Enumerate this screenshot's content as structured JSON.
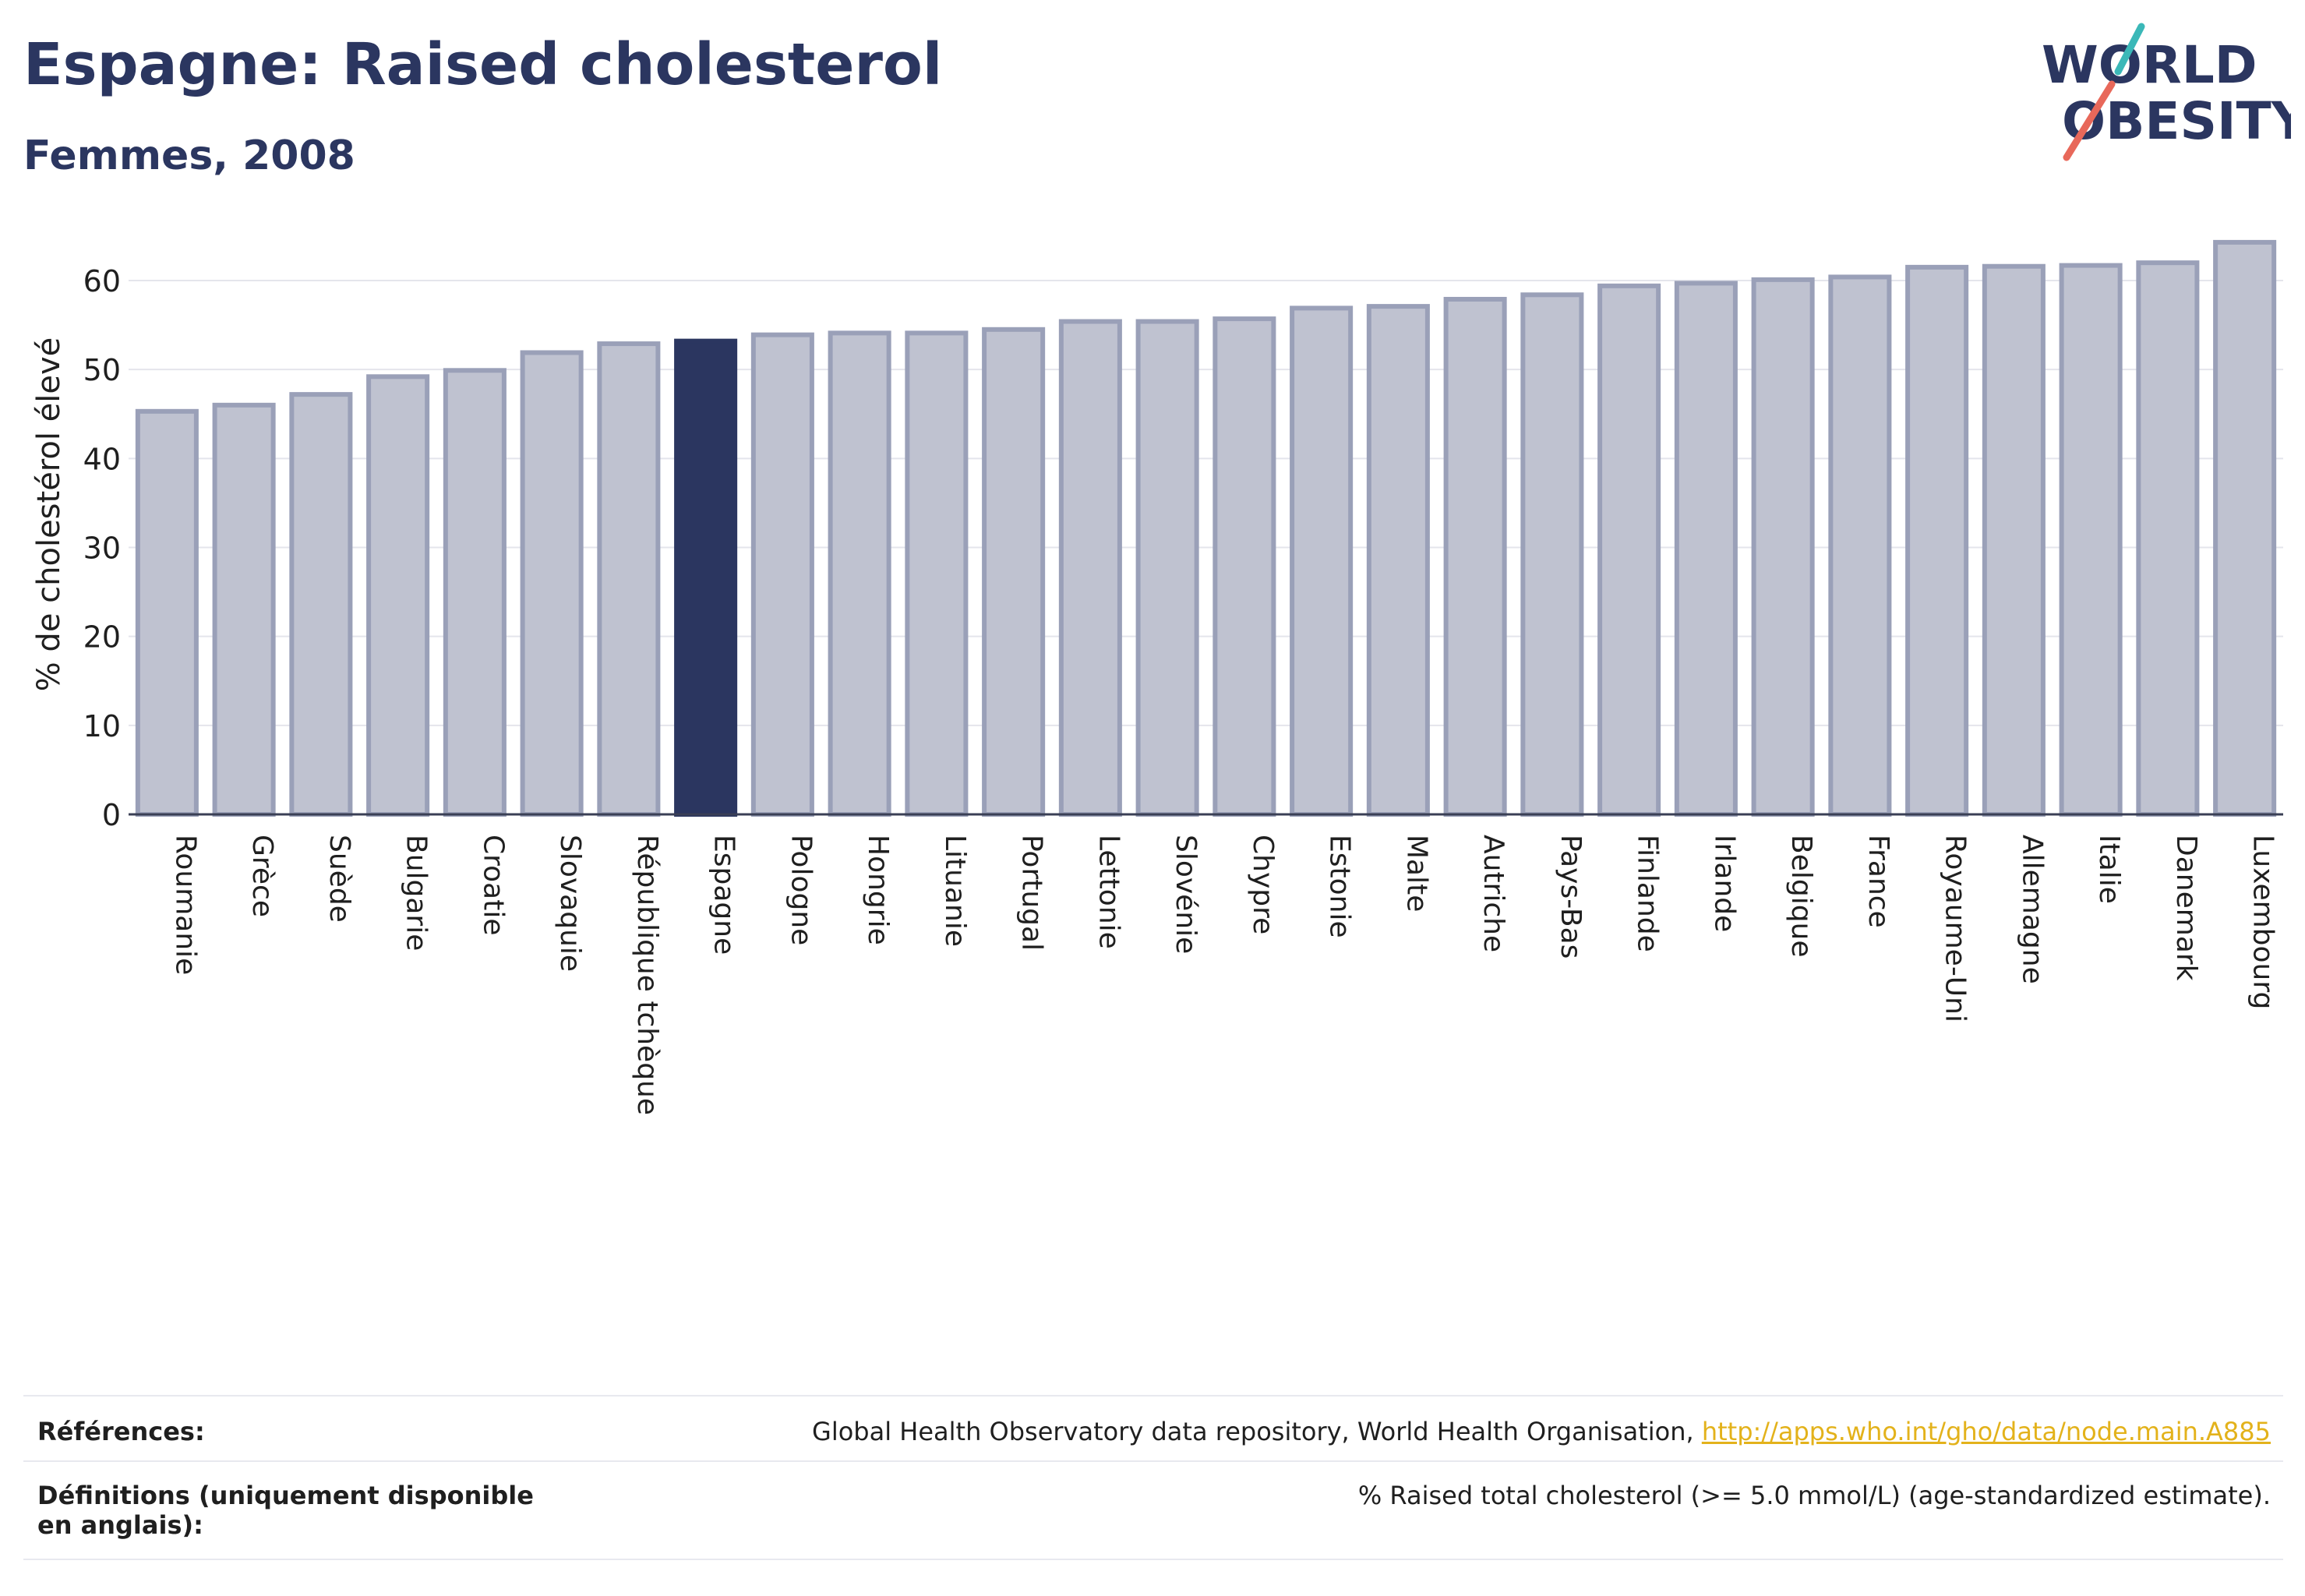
{
  "header": {
    "title": "Espagne: Raised cholesterol",
    "subtitle": "Femmes, 2008"
  },
  "logo": {
    "line1": "WORLD",
    "line2": "OBESITY",
    "text_color": "#2b3660",
    "slash_top_color": "#3bb8b8",
    "slash_bottom_color": "#e8685a"
  },
  "chart_data": {
    "type": "bar",
    "ylabel": "% de cholestérol élevé",
    "ylim": [
      0,
      65
    ],
    "yticks": [
      0,
      10,
      20,
      30,
      40,
      50,
      60
    ],
    "grid": true,
    "highlight": "Espagne",
    "bar_color": "#bfc2d0",
    "bar_border_color": "#9aa0b8",
    "highlight_color": "#2b3660",
    "categories": [
      "Roumanie",
      "Grèce",
      "Suède",
      "Bulgarie",
      "Croatie",
      "Slovaquie",
      "République tchèque",
      "Espagne",
      "Pologne",
      "Hongrie",
      "Lituanie",
      "Portugal",
      "Lettonie",
      "Slovénie",
      "Chypre",
      "Estonie",
      "Malte",
      "Autriche",
      "Pays-Bas",
      "Finlande",
      "Irlande",
      "Belgique",
      "France",
      "Royaume-Uni",
      "Allemagne",
      "Italie",
      "Danemark",
      "Luxembourg"
    ],
    "values": [
      45.3,
      46.0,
      47.2,
      49.2,
      49.9,
      51.9,
      52.9,
      53.2,
      53.9,
      54.1,
      54.1,
      54.5,
      55.4,
      55.4,
      55.7,
      56.9,
      57.1,
      57.9,
      58.4,
      59.4,
      59.7,
      60.1,
      60.4,
      61.5,
      61.6,
      61.7,
      62.0,
      64.3
    ]
  },
  "footer": {
    "references_label": "Références:",
    "references_text": "Global Health Observatory data repository, World Health Organisation, ",
    "references_link": "http://apps.who.int/gho/data/node.main.A885",
    "definitions_label": "Définitions (uniquement disponible en anglais):",
    "definitions_text": "% Raised total cholesterol (>= 5.0 mmol/L) (age-standardized estimate)."
  }
}
